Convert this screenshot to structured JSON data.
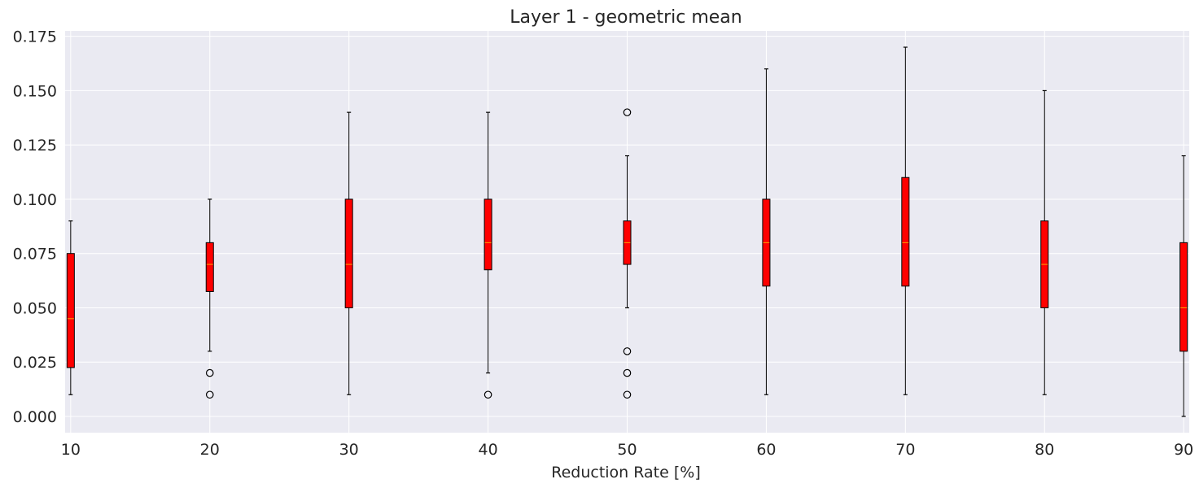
{
  "chart_data": {
    "type": "box",
    "title": "Layer 1 - geometric mean",
    "xlabel": "Reduction Rate [%]",
    "ylabel": "",
    "ylim": [
      -0.0075,
      0.1775
    ],
    "yticks": [
      "0.000",
      "0.025",
      "0.050",
      "0.075",
      "0.100",
      "0.125",
      "0.150",
      "0.175"
    ],
    "xlim": [
      9.6,
      90.4
    ],
    "grid": true,
    "colors": {
      "background": "#EAEAF2",
      "grid": "#FFFFFF",
      "box_fill": "#FF0000",
      "median": "#FFA500",
      "whisker": "#000000"
    },
    "categories": [
      "10",
      "20",
      "30",
      "40",
      "50",
      "60",
      "70",
      "80",
      "90"
    ],
    "boxes": [
      {
        "x": 10,
        "whislo": 0.01,
        "q1": 0.0225,
        "med": 0.045,
        "q3": 0.075,
        "whishi": 0.09,
        "fliers": []
      },
      {
        "x": 20,
        "whislo": 0.03,
        "q1": 0.0575,
        "med": 0.07,
        "q3": 0.08,
        "whishi": 0.1,
        "fliers": [
          0.02,
          0.01
        ]
      },
      {
        "x": 30,
        "whislo": 0.01,
        "q1": 0.05,
        "med": 0.07,
        "q3": 0.1,
        "whishi": 0.14,
        "fliers": []
      },
      {
        "x": 40,
        "whislo": 0.02,
        "q1": 0.0675,
        "med": 0.08,
        "q3": 0.1,
        "whishi": 0.14,
        "fliers": [
          0.01
        ]
      },
      {
        "x": 50,
        "whislo": 0.05,
        "q1": 0.07,
        "med": 0.08,
        "q3": 0.09,
        "whishi": 0.12,
        "fliers": [
          0.14,
          0.03,
          0.02,
          0.01
        ]
      },
      {
        "x": 60,
        "whislo": 0.01,
        "q1": 0.06,
        "med": 0.08,
        "q3": 0.1,
        "whishi": 0.16,
        "fliers": []
      },
      {
        "x": 70,
        "whislo": 0.01,
        "q1": 0.06,
        "med": 0.08,
        "q3": 0.11,
        "whishi": 0.17,
        "fliers": []
      },
      {
        "x": 80,
        "whislo": 0.01,
        "q1": 0.05,
        "med": 0.07,
        "q3": 0.09,
        "whishi": 0.15,
        "fliers": []
      },
      {
        "x": 90,
        "whislo": 0.0,
        "q1": 0.03,
        "med": 0.05,
        "q3": 0.08,
        "whishi": 0.12,
        "fliers": []
      }
    ]
  }
}
